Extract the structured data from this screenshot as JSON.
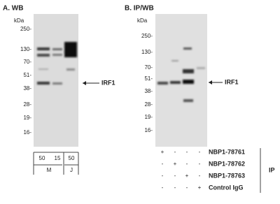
{
  "panel_a": {
    "title": "A. WB",
    "unit": "kDa",
    "markers": [
      "250-",
      "130-",
      "70-",
      "51-",
      "38-",
      "28-",
      "19-",
      "16-"
    ],
    "target": "IRF1",
    "lane_amounts": [
      "50",
      "15",
      "50"
    ],
    "lane_groups": [
      "M",
      "J"
    ]
  },
  "panel_b": {
    "title": "B. IP/WB",
    "unit": "kDa",
    "markers": [
      "250-",
      "130-",
      "70-",
      "51-",
      "38-",
      "28-",
      "19-",
      "16-"
    ],
    "target": "IRF1",
    "rows": [
      {
        "signs": [
          "+",
          "-",
          "-",
          "-"
        ],
        "label": "NBP1-78761"
      },
      {
        "signs": [
          "-",
          "+",
          "-",
          "-"
        ],
        "label": "NBP1-78762"
      },
      {
        "signs": [
          "-",
          "-",
          "+",
          "-"
        ],
        "label": "NBP1-78763"
      },
      {
        "signs": [
          "-",
          "-",
          "-",
          "+"
        ],
        "label": "Control IgG"
      }
    ],
    "group_label": "IP"
  }
}
